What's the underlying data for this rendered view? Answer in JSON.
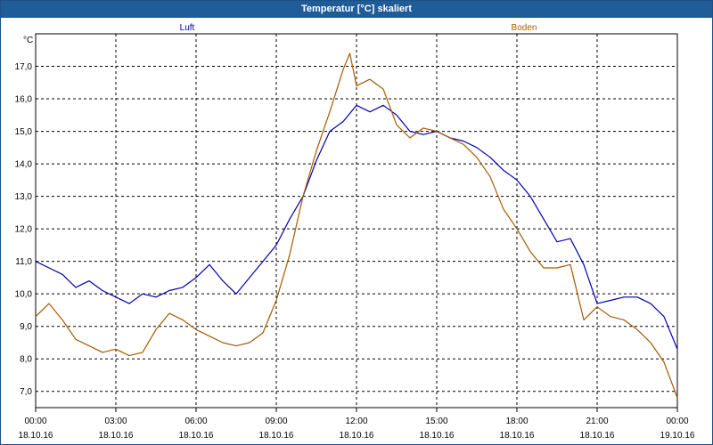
{
  "window": {
    "title": "Temperatur [°C] skaliert"
  },
  "chart_data": {
    "type": "line",
    "title": "Temperatur [°C] skaliert",
    "ylabel": "°C",
    "xlabel": "",
    "ylim": [
      6.5,
      18.0
    ],
    "xlim": [
      0,
      24
    ],
    "grid": true,
    "yticks": [
      "7,0",
      "8,0",
      "9,0",
      "10,0",
      "11,0",
      "12,0",
      "13,0",
      "14,0",
      "15,0",
      "16,0",
      "17,0"
    ],
    "ytick_values": [
      7,
      8,
      9,
      10,
      11,
      12,
      13,
      14,
      15,
      16,
      17
    ],
    "xtick_values": [
      0,
      3,
      6,
      9,
      12,
      15,
      18,
      21,
      24
    ],
    "xticks": [
      {
        "time": "00:00",
        "date": "18.10.16"
      },
      {
        "time": "03:00",
        "date": "18.10.16"
      },
      {
        "time": "06:00",
        "date": "18.10.16"
      },
      {
        "time": "09:00",
        "date": "18.10.16"
      },
      {
        "time": "12:00",
        "date": "18.10.16"
      },
      {
        "time": "15:00",
        "date": "18.10.16"
      },
      {
        "time": "18:00",
        "date": "18.10.16"
      },
      {
        "time": "21:00",
        "date": "18.10.16"
      },
      {
        "time": "00:00",
        "date": "19.10.16"
      }
    ],
    "series": [
      {
        "name": "Luft",
        "color": "#0000b0",
        "x": [
          0,
          0.5,
          1,
          1.5,
          2,
          2.5,
          3,
          3.5,
          4,
          4.5,
          5,
          5.5,
          6,
          6.5,
          7,
          7.5,
          8,
          8.5,
          9,
          9.5,
          10,
          10.5,
          11,
          11.5,
          12,
          12.5,
          13,
          13.5,
          14,
          14.5,
          15,
          15.5,
          16,
          16.5,
          17,
          17.5,
          18,
          18.5,
          19,
          19.5,
          20,
          20.5,
          21,
          21.5,
          22,
          22.5,
          23,
          23.5,
          24
        ],
        "values": [
          11.0,
          10.8,
          10.6,
          10.2,
          10.4,
          10.1,
          9.9,
          9.7,
          10.0,
          9.9,
          10.1,
          10.2,
          10.5,
          10.9,
          10.4,
          10.0,
          10.5,
          11.0,
          11.5,
          12.3,
          13.0,
          14.1,
          15.0,
          15.3,
          15.8,
          15.6,
          15.8,
          15.5,
          15.0,
          14.9,
          15.0,
          14.8,
          14.7,
          14.5,
          14.2,
          13.8,
          13.5,
          13.0,
          12.3,
          11.6,
          11.7,
          10.9,
          9.7,
          9.8,
          9.9,
          9.9,
          9.7,
          9.3,
          8.3
        ]
      },
      {
        "name": "Boden",
        "color": "#a85a00",
        "x": [
          0,
          0.5,
          1,
          1.5,
          2,
          2.5,
          3,
          3.5,
          4,
          4.5,
          5,
          5.5,
          6,
          6.5,
          7,
          7.5,
          8,
          8.5,
          9,
          9.5,
          10,
          10.5,
          11,
          11.5,
          11.75,
          12,
          12.5,
          13,
          13.5,
          14,
          14.5,
          15,
          15.5,
          16,
          16.5,
          17,
          17.5,
          18,
          18.5,
          19,
          19.5,
          20,
          20.5,
          21,
          21.5,
          22,
          22.5,
          23,
          23.5,
          24
        ],
        "values": [
          9.3,
          9.7,
          9.2,
          8.6,
          8.4,
          8.2,
          8.3,
          8.1,
          8.2,
          8.9,
          9.4,
          9.2,
          8.9,
          8.7,
          8.5,
          8.4,
          8.5,
          8.8,
          9.8,
          11.2,
          13.0,
          14.4,
          15.6,
          16.9,
          17.4,
          16.4,
          16.6,
          16.3,
          15.2,
          14.8,
          15.1,
          15.0,
          14.8,
          14.6,
          14.2,
          13.6,
          12.6,
          12.0,
          11.3,
          10.8,
          10.8,
          10.9,
          9.2,
          9.6,
          9.3,
          9.2,
          8.9,
          8.5,
          7.9,
          6.8
        ]
      }
    ]
  }
}
